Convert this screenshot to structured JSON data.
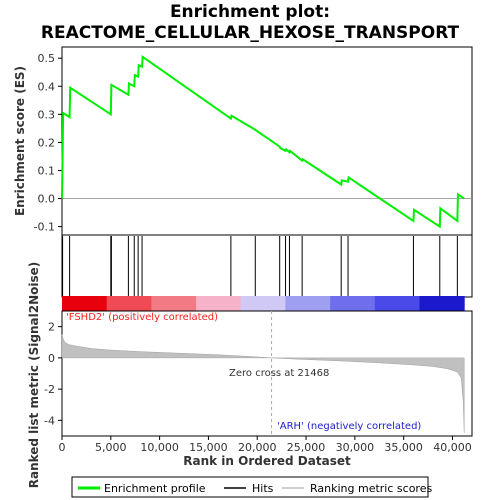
{
  "chart_data": [
    {
      "type": "line",
      "title_line1": "Enrichment plot:",
      "title_line2": "REACTOME_CELLULAR_HEXOSE_TRANSPORT",
      "ylabel": "Enrichment score (ES)",
      "ylim": [
        -0.13,
        0.54
      ],
      "yticks": [
        -0.1,
        0.0,
        0.1,
        0.2,
        0.3,
        0.4,
        0.5
      ],
      "ytick_labels": [
        "-0.1",
        "0.0",
        "0.1",
        "0.2",
        "0.3",
        "0.4",
        "0.5"
      ],
      "xlim": [
        0,
        42000
      ],
      "series": [
        {
          "name": "Enrichment profile",
          "color": "#00ee00",
          "x": [
            0,
            60,
            120,
            780,
            840,
            5000,
            5060,
            6800,
            6860,
            7400,
            7460,
            7800,
            7860,
            8200,
            8260,
            17300,
            17360,
            19800,
            20200,
            22300,
            22360,
            22900,
            22960,
            23300,
            23360,
            24600,
            24660,
            28600,
            28660,
            29300,
            29360,
            36000,
            36060,
            38700,
            38760,
            40500,
            40560,
            41200
          ],
          "y": [
            0.0,
            0.15,
            0.305,
            0.29,
            0.395,
            0.3,
            0.405,
            0.37,
            0.41,
            0.4,
            0.44,
            0.435,
            0.475,
            0.47,
            0.505,
            0.285,
            0.295,
            0.245,
            0.235,
            0.185,
            0.18,
            0.17,
            0.175,
            0.165,
            0.17,
            0.135,
            0.14,
            0.05,
            0.065,
            0.06,
            0.075,
            -0.08,
            -0.04,
            -0.1,
            -0.035,
            -0.08,
            0.015,
            0.0
          ]
        }
      ]
    },
    {
      "type": "hits",
      "hit_positions": [
        60,
        780,
        5000,
        5060,
        6800,
        7400,
        7800,
        8200,
        17300,
        19800,
        22300,
        22900,
        23300,
        24600,
        28600,
        29300,
        36000,
        38700,
        40500
      ],
      "ranking_color_bar": [
        "#e8000c",
        "#f04a55",
        "#f27a84",
        "#f5b2c8",
        "#d0c8f5",
        "#9f9ff2",
        "#6f6fee",
        "#4a4ae8",
        "#1a1acc"
      ]
    },
    {
      "type": "area",
      "title": "Ranking metric scores",
      "ylabel": "Ranked list metric (Signal2Noise)",
      "xlabel": "Rank in Ordered Dataset",
      "ylim": [
        -5,
        3
      ],
      "yticks": [
        -4,
        -2,
        0,
        2
      ],
      "ytick_labels": [
        "-4",
        "-2",
        "0",
        "2"
      ],
      "xticks": [
        0,
        5000,
        10000,
        15000,
        20000,
        25000,
        30000,
        35000,
        40000
      ],
      "xtick_labels": [
        "0",
        "5,000",
        "10,000",
        "15,000",
        "20,000",
        "25,000",
        "30,000",
        "35,000",
        "40,000"
      ],
      "x": [
        0,
        100,
        300,
        700,
        1500,
        3000,
        5000,
        8000,
        12000,
        16000,
        20000,
        21468,
        24000,
        28000,
        32000,
        36000,
        38000,
        39500,
        40500,
        40900,
        41100,
        41200
      ],
      "values": [
        1.5,
        1.25,
        1.0,
        0.85,
        0.75,
        0.6,
        0.5,
        0.4,
        0.3,
        0.2,
        0.06,
        0.0,
        -0.08,
        -0.18,
        -0.3,
        -0.45,
        -0.55,
        -0.7,
        -0.9,
        -1.3,
        -2.8,
        -4.8
      ],
      "zero_cross_rank": 21468,
      "annotation_pos": "'FSHD2' (positively correlated)",
      "annotation_neg": "'ARH' (negatively correlated)",
      "annotation_zero": "Zero cross at 21468",
      "fill_color": "#c0c0c0"
    }
  ],
  "legend": {
    "items": [
      {
        "label": "Enrichment profile",
        "color": "#00ee00"
      },
      {
        "label": "Hits",
        "color": "#000000"
      },
      {
        "label": "Ranking metric scores",
        "color": "#c0c0c0"
      }
    ]
  }
}
